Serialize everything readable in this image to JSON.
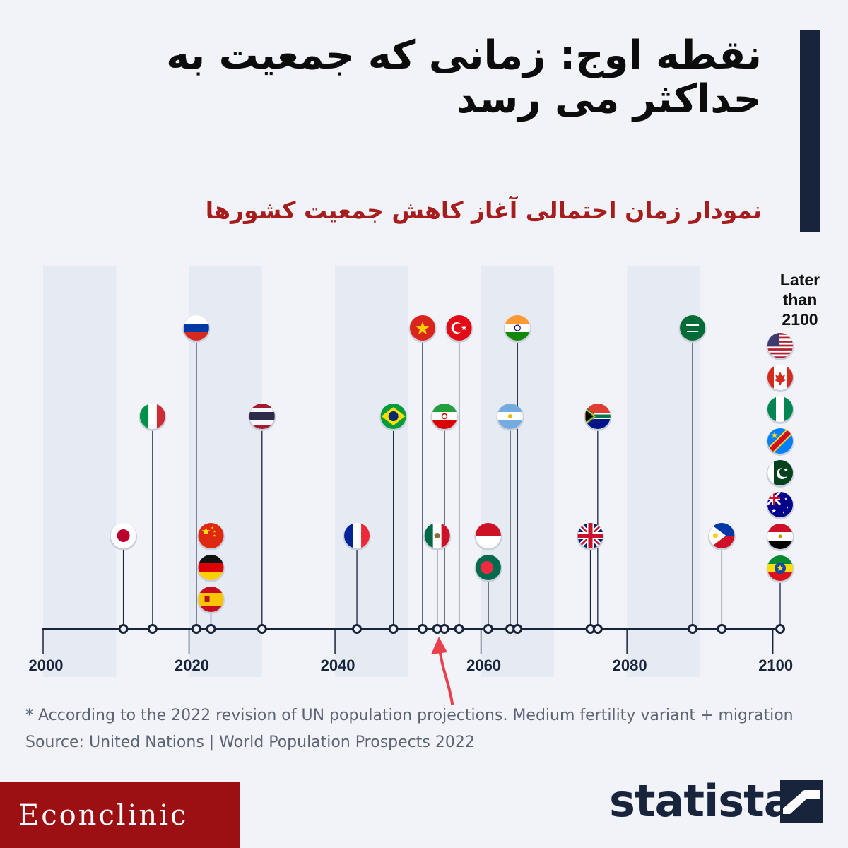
{
  "header": {
    "title": "نقطه اوج: زمانی که جمعیت به حداکثر می رسد",
    "subtitle": "نمودار زمان احتمالی آغاز کاهش جمعیت کشورها"
  },
  "footer": {
    "footnote": "* According to the 2022 revision of UN population projections. Medium fertility variant + migration",
    "source": "Source: United Nations | World Population Prospects 2022",
    "watermark": "Econclinic",
    "brand": "statista"
  },
  "colors": {
    "title": "#0c0c0c",
    "subtitle": "#a51d1d",
    "accent": "#17243b",
    "arrow": "#e8414d",
    "band": "#e6eaf2",
    "watermark_bg": "#9c0f12"
  },
  "chart_data": {
    "type": "timeline",
    "x_ticks": [
      "2000",
      "2020",
      "2040",
      "2060",
      "2080",
      "2100"
    ],
    "xlim": [
      2000,
      2101
    ],
    "later_label": "Later than 2100",
    "highlight_year": 2054,
    "points": [
      {
        "year": 2011,
        "flags": [
          "japan"
        ]
      },
      {
        "year": 2015,
        "flags": [
          "italy"
        ]
      },
      {
        "year": 2021,
        "flags": [
          "russia"
        ]
      },
      {
        "year": 2023,
        "flags": [
          "china",
          "germany",
          "spain"
        ]
      },
      {
        "year": 2030,
        "flags": [
          "thailand"
        ]
      },
      {
        "year": 2043,
        "flags": [
          "france"
        ]
      },
      {
        "year": 2048,
        "flags": [
          "brazil"
        ]
      },
      {
        "year": 2052,
        "flags": [
          "vietnam"
        ]
      },
      {
        "year": 2054,
        "flags": [
          "mexico"
        ]
      },
      {
        "year": 2055,
        "flags": [
          "iran"
        ]
      },
      {
        "year": 2057,
        "flags": [
          "turkey"
        ]
      },
      {
        "year": 2061,
        "flags": [
          "indonesia",
          "bangladesh"
        ]
      },
      {
        "year": 2064,
        "flags": [
          "argentina"
        ]
      },
      {
        "year": 2065,
        "flags": [
          "india"
        ]
      },
      {
        "year": 2075,
        "flags": [
          "united-kingdom"
        ]
      },
      {
        "year": 2076,
        "flags": [
          "south-africa"
        ]
      },
      {
        "year": 2089,
        "flags": [
          "saudi-arabia"
        ]
      },
      {
        "year": 2093,
        "flags": [
          "philippines"
        ]
      },
      {
        "year": "later",
        "flags": [
          "usa",
          "canada",
          "nigeria",
          "dr-congo",
          "pakistan",
          "australia",
          "egypt",
          "ethiopia"
        ]
      }
    ]
  }
}
